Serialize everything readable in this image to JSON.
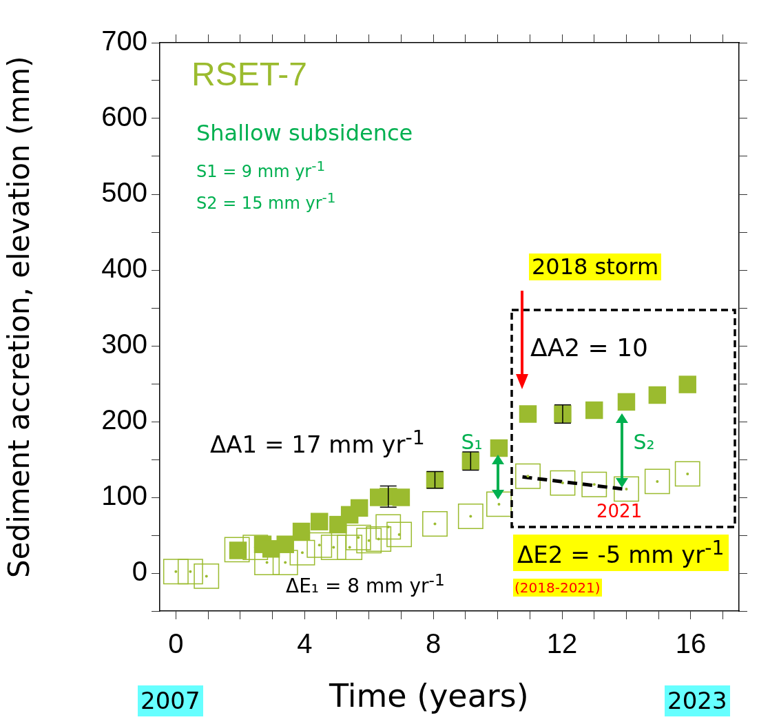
{
  "chart_data": {
    "type": "scatter",
    "title": "RSET-7",
    "xlabel": "Time (years)",
    "ylabel": "Sediment accretion, elevation (mm)",
    "xlim": [
      -0.5,
      17.5
    ],
    "ylim": [
      -50,
      700
    ],
    "xticks": [
      {
        "value": 0,
        "label": "0"
      },
      {
        "value": 1,
        "label": null
      },
      {
        "value": 2,
        "label": null
      },
      {
        "value": 3,
        "label": null
      },
      {
        "value": 4,
        "label": "4"
      },
      {
        "value": 5,
        "label": null
      },
      {
        "value": 6,
        "label": null
      },
      {
        "value": 7,
        "label": null
      },
      {
        "value": 8,
        "label": "8"
      },
      {
        "value": 9,
        "label": null
      },
      {
        "value": 10,
        "label": null
      },
      {
        "value": 11,
        "label": null
      },
      {
        "value": 12,
        "label": "12"
      },
      {
        "value": 13,
        "label": null
      },
      {
        "value": 14,
        "label": null
      },
      {
        "value": 15,
        "label": null
      },
      {
        "value": 16,
        "label": "16"
      },
      {
        "value": 17,
        "label": null
      }
    ],
    "yticks": [
      {
        "value": -50,
        "label": null
      },
      0,
      {
        "value": 50,
        "label": null
      },
      100,
      {
        "value": 150,
        "label": null
      },
      200,
      {
        "value": 250,
        "label": null
      },
      300,
      {
        "value": 350,
        "label": null
      },
      400,
      {
        "value": 450,
        "label": null
      },
      500,
      {
        "value": 550,
        "label": null
      },
      600,
      {
        "value": 650,
        "label": null
      },
      700
    ],
    "marker": "square",
    "grid": false,
    "legend": false,
    "series": [
      {
        "color": "#9bbb2f",
        "x": [
          1.93,
          2.7,
          2.96,
          3.4,
          3.9,
          4.46,
          5.04,
          5.4,
          5.7,
          6.3,
          6.6,
          7.0,
          8.05,
          9.16,
          10.04,
          10.94,
          12.02,
          13.0,
          14.0,
          14.96,
          15.9
        ],
        "values": [
          30,
          38,
          32,
          38,
          55,
          68,
          64,
          77,
          86,
          100,
          101,
          100,
          123,
          148,
          165,
          210,
          210,
          215,
          226,
          235,
          249
        ],
        "errors": [
          null,
          null,
          null,
          null,
          null,
          null,
          null,
          null,
          null,
          null,
          14,
          null,
          11,
          12,
          null,
          null,
          12,
          null,
          null,
          null,
          null
        ]
      },
      {
        "color": "#9bbb2f",
        "x": [
          0,
          0.45,
          0.95,
          1.9,
          2.47,
          2.83,
          3.4,
          3.93,
          4.46,
          4.9,
          5.4,
          5.67,
          6.0,
          6.3,
          6.6,
          6.94,
          8.05,
          9.16,
          10.04,
          10.94,
          12.02,
          13.0,
          14.0,
          14.96,
          15.9
        ],
        "values": [
          2,
          2,
          -4,
          31,
          34,
          14,
          14,
          27,
          37,
          34,
          34,
          47,
          43,
          45,
          61,
          51,
          65,
          75,
          91,
          128,
          119,
          117,
          111,
          121,
          131
        ]
      },
      {
        "type": "line",
        "color": "#000000",
        "line_style": "dashed",
        "marker": "none",
        "x": [
          10.77,
          13.9
        ],
        "values": [
          127,
          111
        ]
      }
    ],
    "annotations": [
      "Shallow subsidence",
      "S1 = 9 mm yr$^{-1}$",
      "S2 = 15 mm yr$^{-1}$",
      "2018 storm",
      "ΔA2 = 10",
      "ΔA1 = 17 mm yr$^{-1}$",
      {
        "text": "S₁",
        "x": 10.04,
        "y": 165
      },
      {
        "text": "S₂",
        "x": 14.0,
        "y": 226
      },
      "2021",
      "ΔE2 = -5 mm yr$^{-1}$",
      "(2018-2021)",
      "ΔE₁ = 8 mm yr$^{-1}$",
      "2007",
      "2023"
    ]
  }
}
